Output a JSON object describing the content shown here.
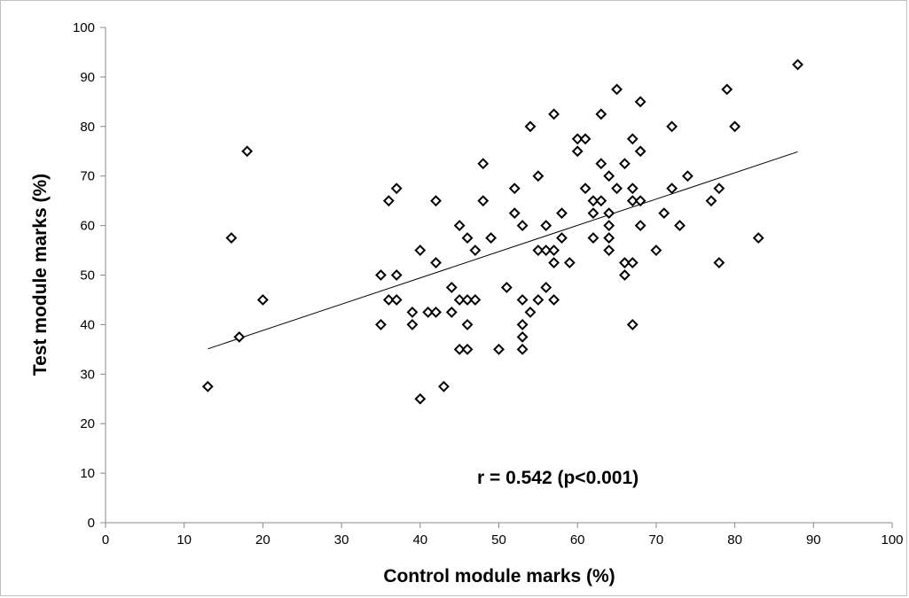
{
  "chart_data": {
    "type": "scatter",
    "title": "",
    "xlabel": "Control module marks (%)",
    "ylabel": "Test module marks (%)",
    "xlim": [
      0,
      100
    ],
    "ylim": [
      0,
      100
    ],
    "x_ticks": [
      "0",
      "10",
      "20",
      "30",
      "40",
      "50",
      "60",
      "70",
      "80",
      "90",
      "100"
    ],
    "y_ticks": [
      "0",
      "10",
      "20",
      "30",
      "40",
      "50",
      "60",
      "70",
      "80",
      "90",
      "100"
    ],
    "grid": false,
    "legend": "none",
    "marker": "hollow-diamond",
    "marker_color": "#000000",
    "annotation": "r = 0.542 (p<0.001)",
    "trendline": {
      "type": "linear",
      "x": [
        13,
        88
      ],
      "y": [
        35.1,
        74.9
      ]
    },
    "series": [
      {
        "points": [
          [
            13,
            27.5
          ],
          [
            16,
            57.5
          ],
          [
            17,
            37.5
          ],
          [
            18,
            75
          ],
          [
            20,
            45
          ],
          [
            35,
            50
          ],
          [
            35,
            40
          ],
          [
            36,
            65
          ],
          [
            36,
            45
          ],
          [
            37,
            67.5
          ],
          [
            37,
            50
          ],
          [
            37,
            45
          ],
          [
            39,
            42.5
          ],
          [
            39,
            40
          ],
          [
            40,
            55
          ],
          [
            40,
            25
          ],
          [
            41,
            42.5
          ],
          [
            42,
            65
          ],
          [
            42,
            52.5
          ],
          [
            42,
            42.5
          ],
          [
            43,
            27.5
          ],
          [
            44,
            47.5
          ],
          [
            44,
            42.5
          ],
          [
            45,
            60
          ],
          [
            45,
            45
          ],
          [
            45,
            35
          ],
          [
            46,
            57.5
          ],
          [
            46,
            45
          ],
          [
            46,
            40
          ],
          [
            46,
            35
          ],
          [
            47,
            55
          ],
          [
            47,
            45
          ],
          [
            48,
            72.5
          ],
          [
            48,
            65
          ],
          [
            49,
            57.5
          ],
          [
            50,
            35
          ],
          [
            51,
            47.5
          ],
          [
            52,
            67.5
          ],
          [
            52,
            62.5
          ],
          [
            53,
            60
          ],
          [
            53,
            45
          ],
          [
            53,
            40
          ],
          [
            53,
            37.5
          ],
          [
            53,
            35
          ],
          [
            54,
            80
          ],
          [
            54,
            42.5
          ],
          [
            55,
            70
          ],
          [
            55,
            55
          ],
          [
            55,
            45
          ],
          [
            56,
            60
          ],
          [
            56,
            55
          ],
          [
            56,
            47.5
          ],
          [
            57,
            82.5
          ],
          [
            57,
            55
          ],
          [
            57,
            52.5
          ],
          [
            57,
            45
          ],
          [
            58,
            62.5
          ],
          [
            58,
            57.5
          ],
          [
            59,
            52.5
          ],
          [
            60,
            77.5
          ],
          [
            60,
            75
          ],
          [
            61,
            77.5
          ],
          [
            61,
            67.5
          ],
          [
            62,
            65
          ],
          [
            62,
            62.5
          ],
          [
            62,
            57.5
          ],
          [
            63,
            82.5
          ],
          [
            63,
            72.5
          ],
          [
            63,
            65
          ],
          [
            64,
            70
          ],
          [
            64,
            62.5
          ],
          [
            64,
            60
          ],
          [
            64,
            57.5
          ],
          [
            64,
            55
          ],
          [
            65,
            87.5
          ],
          [
            65,
            67.5
          ],
          [
            66,
            72.5
          ],
          [
            66,
            52.5
          ],
          [
            66,
            50
          ],
          [
            67,
            77.5
          ],
          [
            67,
            67.5
          ],
          [
            67,
            65
          ],
          [
            67,
            52.5
          ],
          [
            67,
            40
          ],
          [
            68,
            85
          ],
          [
            68,
            75
          ],
          [
            68,
            65
          ],
          [
            68,
            60
          ],
          [
            70,
            55
          ],
          [
            71,
            62.5
          ],
          [
            72,
            80
          ],
          [
            72,
            67.5
          ],
          [
            73,
            60
          ],
          [
            74,
            70
          ],
          [
            77,
            65
          ],
          [
            78,
            67.5
          ],
          [
            78,
            52.5
          ],
          [
            79,
            87.5
          ],
          [
            80,
            80
          ],
          [
            83,
            57.5
          ],
          [
            88,
            92.5
          ]
        ]
      }
    ]
  }
}
